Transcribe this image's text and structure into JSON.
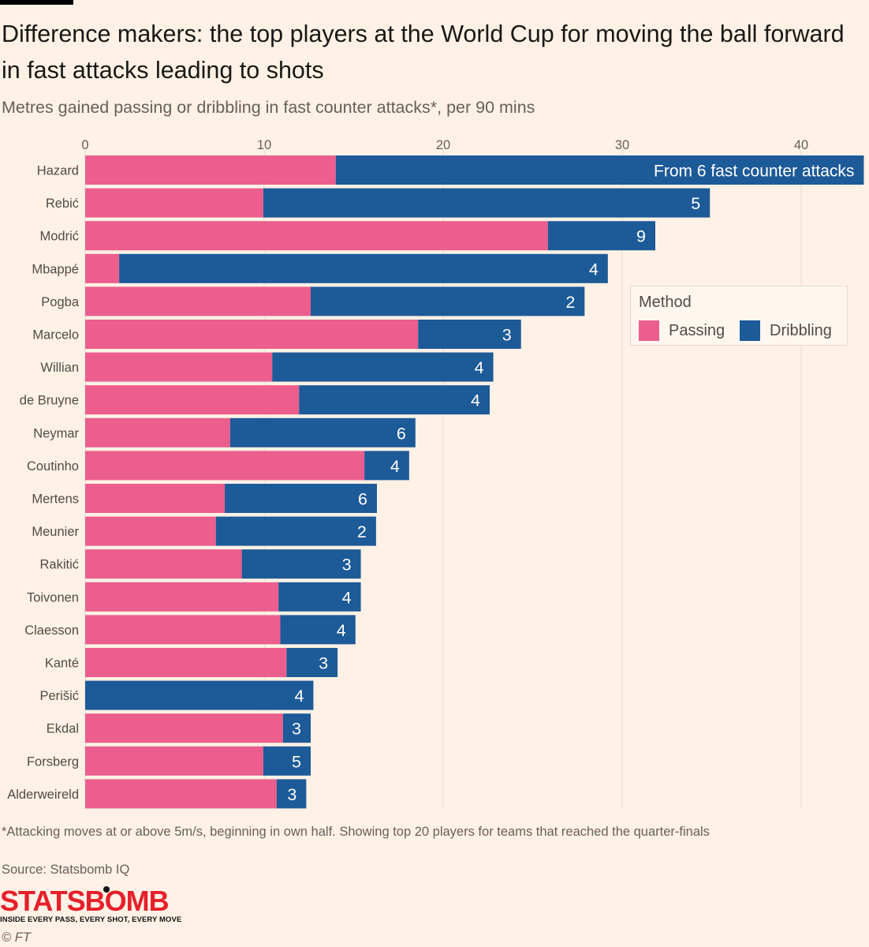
{
  "header": {
    "title": "Difference makers: the top players at the World Cup for moving the ball forward in fast attacks leading to shots",
    "subtitle": "Metres gained passing or dribbling in fast counter attacks*, per 90 mins"
  },
  "legend": {
    "title": "Method",
    "items": [
      {
        "label": "Passing",
        "color": "#eb5e8d"
      },
      {
        "label": "Dribbling",
        "color": "#1d5a98"
      }
    ]
  },
  "chart_data": {
    "type": "bar",
    "orientation": "horizontal",
    "stacked": true,
    "xlim": [
      0,
      43.5
    ],
    "xticks": [
      0,
      10,
      20,
      30,
      40
    ],
    "grid": true,
    "legend_position": "right",
    "categories": [
      "Hazard",
      "Rebić",
      "Modrić",
      "Mbappé",
      "Pogba",
      "Marcelo",
      "Willian",
      "de Bruyne",
      "Neymar",
      "Coutinho",
      "Mertens",
      "Meunier",
      "Rakitić",
      "Toivonen",
      "Claesson",
      "Kanté",
      "Perišić",
      "Ekdal",
      "Forsberg",
      "Alderweireld"
    ],
    "series": [
      {
        "name": "Passing",
        "color": "#eb5e8d",
        "values": [
          14.0,
          9.95,
          25.85,
          1.9,
          12.6,
          18.6,
          10.45,
          11.95,
          8.1,
          15.6,
          7.8,
          7.3,
          8.75,
          10.8,
          10.9,
          11.25,
          0.0,
          11.05,
          9.95,
          10.7
        ]
      },
      {
        "name": "Dribbling",
        "color": "#1d5a98",
        "values": [
          29.5,
          24.95,
          6.0,
          27.3,
          15.3,
          5.75,
          12.35,
          10.65,
          10.35,
          2.5,
          8.5,
          8.95,
          6.65,
          4.6,
          4.2,
          2.85,
          12.75,
          1.55,
          2.65,
          1.65
        ]
      }
    ],
    "counter_attacks": [
      "From 6 fast counter attacks",
      "5",
      "9",
      "4",
      "2",
      "3",
      "4",
      "4",
      "6",
      "4",
      "6",
      "2",
      "3",
      "4",
      "4",
      "3",
      "4",
      "3",
      "5",
      "3"
    ]
  },
  "footer": {
    "footnote": "*Attacking moves at or above 5m/s, beginning in own half. Showing top 20 players for teams that reached the quarter-finals",
    "source": "Source: Statsbomb IQ",
    "logo_text": "STATSBOMB",
    "logo_tagline": "INSIDE EVERY PASS, EVERY SHOT, EVERY MOVE",
    "copyright": "© FT"
  }
}
